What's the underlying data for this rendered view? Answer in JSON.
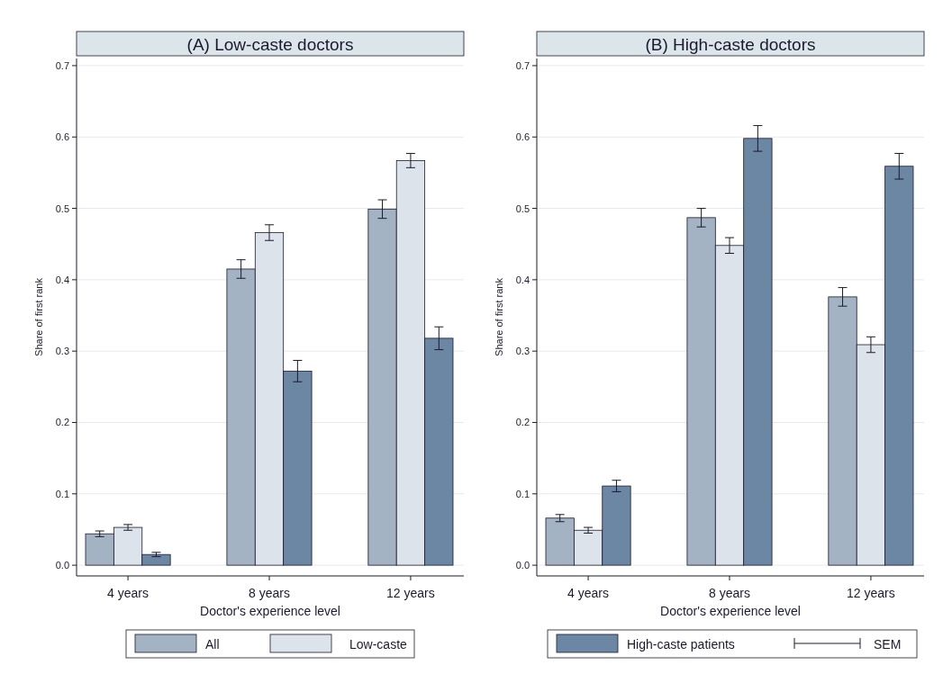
{
  "chart_data": [
    {
      "type": "bar",
      "title": "(A) Low-caste doctors",
      "xlabel": "Doctor's experience level",
      "ylabel": "Share of first rank",
      "categories": [
        "4 years",
        "8 years",
        "12 years"
      ],
      "ylim": [
        -0.015,
        0.71
      ],
      "yticks": [
        {
          "value": 0,
          "label": "0.0"
        },
        {
          "value": 0.1,
          "label": "0.1"
        },
        {
          "value": 0.2,
          "label": "0.2"
        },
        {
          "value": 0.3,
          "label": "0.3"
        },
        {
          "value": 0.4,
          "label": "0.4"
        },
        {
          "value": 0.5,
          "label": "0.5"
        },
        {
          "value": 0.6,
          "label": "0.6"
        },
        {
          "value": 0.7,
          "label": "0.7"
        }
      ],
      "grid": "y",
      "legend": "bottom",
      "series": [
        {
          "name": "All",
          "color": "#a3b3c3",
          "values": [
            0.044,
            0.415,
            0.499
          ],
          "errors": [
            0.004,
            0.013,
            0.013
          ]
        },
        {
          "name": "Low-caste",
          "color": "#dde3ea",
          "values": [
            0.053,
            0.466,
            0.567
          ],
          "errors": [
            0.004,
            0.011,
            0.01
          ]
        },
        {
          "color": "#6c87a3",
          "values": [
            0.015,
            0.272,
            0.318
          ],
          "errors": [
            0.003,
            0.015,
            0.016
          ]
        }
      ]
    },
    {
      "type": "bar",
      "title": "(B) High-caste doctors",
      "xlabel": "Doctor's experience level",
      "ylabel": "Share of first rank",
      "categories": [
        "4 years",
        "8 years",
        "12 years"
      ],
      "ylim": [
        -0.015,
        0.71
      ],
      "yticks": [
        {
          "value": 0,
          "label": "0.0"
        },
        {
          "value": 0.1,
          "label": "0.1"
        },
        {
          "value": 0.2,
          "label": "0.2"
        },
        {
          "value": 0.3,
          "label": "0.3"
        },
        {
          "value": 0.4,
          "label": "0.4"
        },
        {
          "value": 0.5,
          "label": "0.5"
        },
        {
          "value": 0.6,
          "label": "0.6"
        },
        {
          "value": 0.7,
          "label": "0.7"
        }
      ],
      "grid": "y",
      "legend": "bottom",
      "annotations": [
        "SEM"
      ],
      "series": [
        {
          "color": "#a3b3c3",
          "values": [
            0.066,
            0.487,
            0.376
          ],
          "errors": [
            0.005,
            0.013,
            0.013
          ]
        },
        {
          "color": "#dde3ea",
          "values": [
            0.049,
            0.448,
            0.309
          ],
          "errors": [
            0.004,
            0.011,
            0.011
          ]
        },
        {
          "name": "High-caste patients",
          "color": "#6c87a3",
          "values": [
            0.111,
            0.598,
            0.559
          ],
          "errors": [
            0.008,
            0.018,
            0.018
          ]
        }
      ]
    }
  ]
}
